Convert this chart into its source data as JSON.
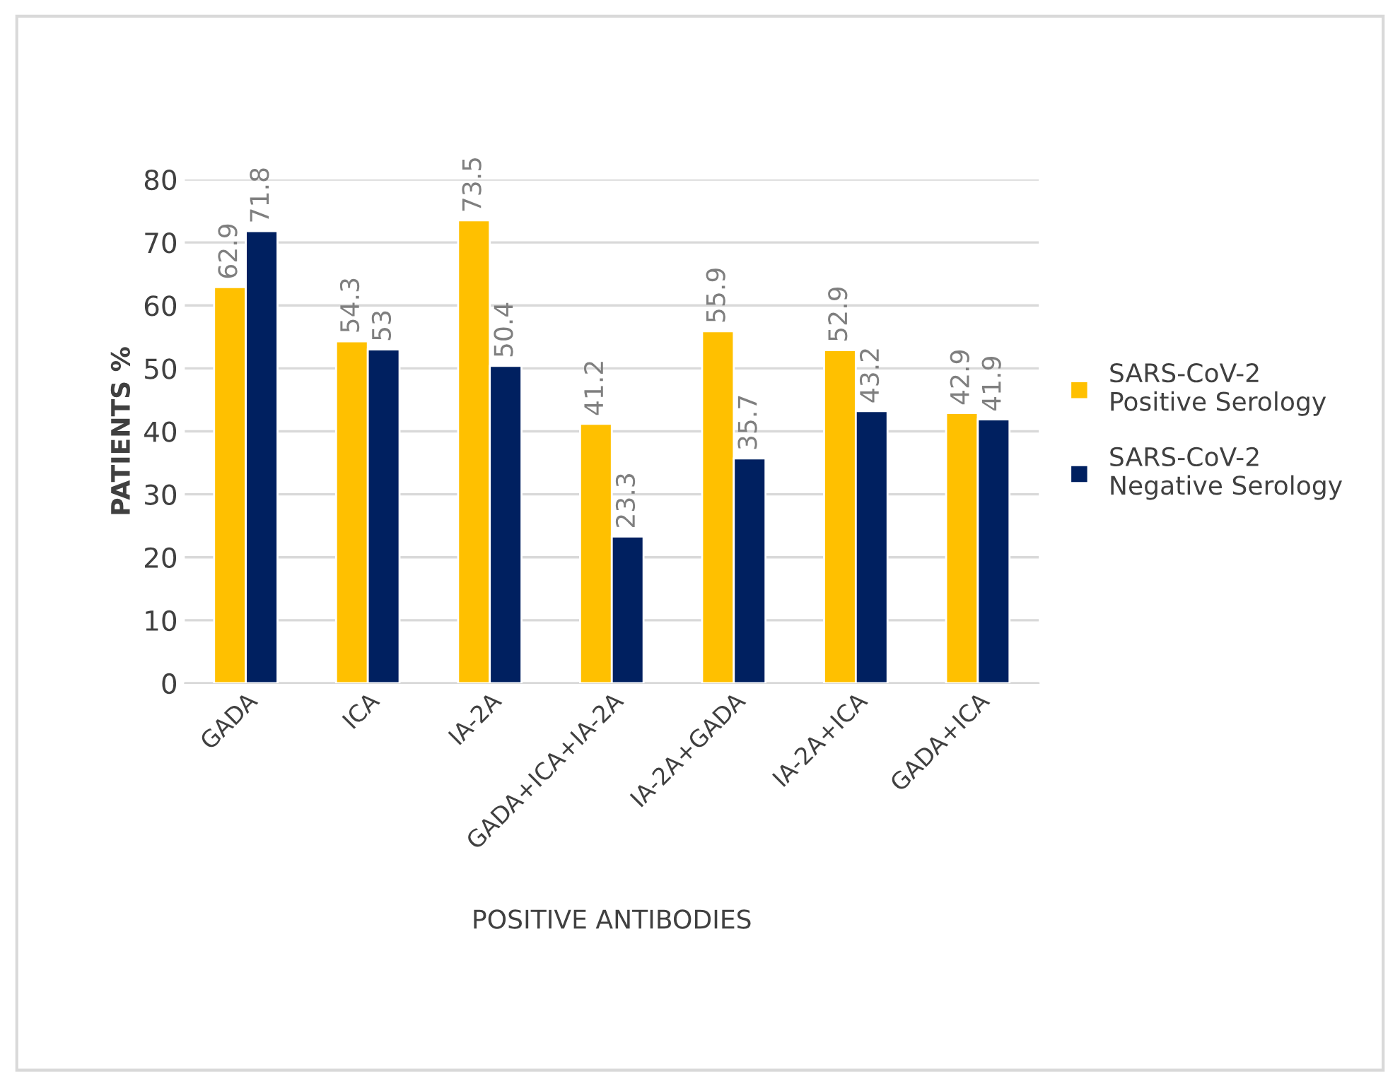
{
  "chart_data": {
    "type": "bar",
    "xlabel": "POSITIVE ANTIBODIES",
    "ylabel": "PATIENTS %",
    "categories": [
      "GADA",
      "ICA",
      "IA-2A",
      "GADA+ICA+IA-2A",
      "IA-2A+GADA",
      "IA-2A+ICA",
      "GADA+ICA"
    ],
    "series": [
      {
        "name": "SARS-CoV-2\nPositive Serology",
        "color": "#ffc000",
        "values": [
          62.9,
          54.3,
          73.5,
          41.2,
          55.9,
          52.9,
          42.9
        ]
      },
      {
        "name": "SARS-CoV-2\nNegative Serology",
        "color": "#002060",
        "values": [
          71.8,
          53,
          50.4,
          23.3,
          35.7,
          43.2,
          41.9
        ]
      }
    ],
    "ylim": [
      0,
      80
    ],
    "yticks": [
      0,
      10,
      20,
      30,
      40,
      50,
      60,
      70,
      80
    ],
    "grid": "y",
    "legend": "right",
    "data_labels": true
  }
}
